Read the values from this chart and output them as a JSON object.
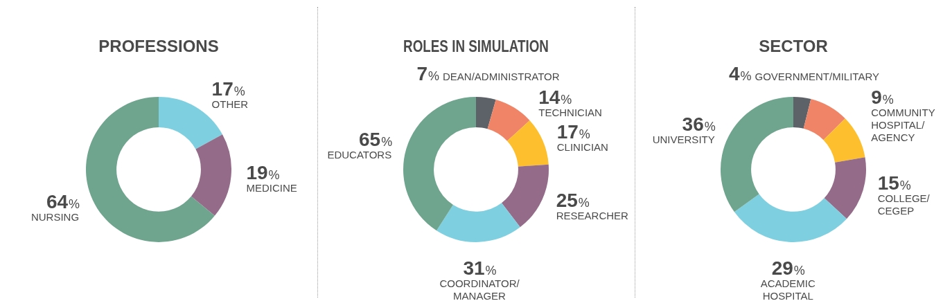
{
  "chart_data": [
    {
      "type": "donut",
      "title": "PROFESSIONS",
      "categories": [
        "OTHER",
        "MEDICINE",
        "NURSING"
      ],
      "values": [
        17,
        19,
        64
      ],
      "colors": [
        "#7ecfe0",
        "#946c8a",
        "#6fa58f"
      ],
      "value_labels": [
        "17%",
        "19%",
        "64%"
      ],
      "legend": false
    },
    {
      "type": "donut",
      "title": "ROLES IN SIMULATION",
      "categories": [
        "DEAN/ADMINISTRATOR",
        "TECHNICIAN",
        "CLINICIAN",
        "RESEARCHER",
        "COORDINATOR/MANAGER",
        "EDUCATORS"
      ],
      "values": [
        7,
        14,
        17,
        25,
        31,
        65
      ],
      "colors": [
        "#5d6168",
        "#f08467",
        "#fdbf2d",
        "#946c8a",
        "#7ecfe0",
        "#6fa58f"
      ],
      "value_labels": [
        "7%",
        "14%",
        "17%",
        "25%",
        "31%",
        "65%"
      ],
      "legend": false
    },
    {
      "type": "donut",
      "title": "SECTOR",
      "categories": [
        "GOVERNMENT/MILITARY",
        "COMMUNITY HOSPITAL/AGENCY",
        null,
        "COLLEGE/CEGEP",
        "ACADEMIC HOSPITAL",
        "UNIVERSITY"
      ],
      "values": [
        4,
        9,
        10,
        15,
        29,
        36
      ],
      "colors": [
        "#5d6168",
        "#f08467",
        "#fdbf2d",
        "#946c8a",
        "#7ecfe0",
        "#6fa58f"
      ],
      "value_labels": [
        "4%",
        "9%",
        null,
        "15%",
        "29%",
        "36%"
      ],
      "legend": false
    }
  ]
}
